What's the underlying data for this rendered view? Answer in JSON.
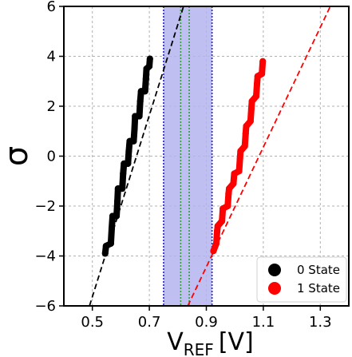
{
  "chart_data": {
    "type": "scatter",
    "title": "",
    "xlabel": "V",
    "xlabel_subscript": "REF",
    "xlabel_unit": "[V]",
    "ylabel": "σ",
    "xlim": [
      0.4,
      1.4
    ],
    "ylim": [
      -6,
      6
    ],
    "xticks": [
      0.5,
      0.7,
      0.9,
      1.1,
      1.3
    ],
    "yticks": [
      -6,
      -4,
      -2,
      0,
      2,
      4,
      6
    ],
    "xtick_labels": [
      "0.5",
      "0.7",
      "0.9",
      "1.1",
      "1.3"
    ],
    "ytick_labels": [
      "−6",
      "−4",
      "−2",
      "0",
      "2",
      "4",
      "6"
    ],
    "grid": true,
    "legend_position": "lower-right",
    "shaded_band": {
      "x": [
        0.75,
        0.92
      ],
      "color": "#b4b4f0",
      "edge_color": "#1f1fd0"
    },
    "vertical_lines": [
      {
        "x": 0.81,
        "color": "#2ca02c",
        "style": "dotted"
      },
      {
        "x": 0.84,
        "color": "#2ca02c",
        "style": "dotted"
      }
    ],
    "series": [
      {
        "name": "0 State",
        "color": "#000000",
        "points": [
          [
            0.545,
            -3.9
          ],
          [
            0.548,
            -3.6
          ],
          [
            0.565,
            -3.5
          ],
          [
            0.568,
            -2.9
          ],
          [
            0.571,
            -2.4
          ],
          [
            0.585,
            -2.4
          ],
          [
            0.588,
            -1.8
          ],
          [
            0.59,
            -1.3
          ],
          [
            0.605,
            -1.3
          ],
          [
            0.608,
            -0.7
          ],
          [
            0.611,
            -0.3
          ],
          [
            0.625,
            -0.3
          ],
          [
            0.628,
            0.2
          ],
          [
            0.631,
            0.6
          ],
          [
            0.645,
            0.6
          ],
          [
            0.648,
            1.1
          ],
          [
            0.65,
            1.6
          ],
          [
            0.665,
            1.6
          ],
          [
            0.668,
            2.2
          ],
          [
            0.671,
            2.6
          ],
          [
            0.685,
            2.6
          ],
          [
            0.688,
            3.1
          ],
          [
            0.69,
            3.5
          ],
          [
            0.7,
            3.6
          ],
          [
            0.702,
            3.9
          ]
        ],
        "fit_line": {
          "x": [
            0.49,
            0.82
          ],
          "y": [
            -6,
            6
          ]
        }
      },
      {
        "name": "1 State",
        "color": "#ff0000",
        "points": [
          [
            0.925,
            -3.8
          ],
          [
            0.935,
            -3.5
          ],
          [
            0.938,
            -3.0
          ],
          [
            0.94,
            -2.8
          ],
          [
            0.955,
            -2.6
          ],
          [
            0.958,
            -2.1
          ],
          [
            0.975,
            -2.0
          ],
          [
            0.978,
            -1.5
          ],
          [
            0.98,
            -1.3
          ],
          [
            0.995,
            -1.1
          ],
          [
            0.998,
            -0.7
          ],
          [
            1.015,
            -0.6
          ],
          [
            1.018,
            -0.1
          ],
          [
            1.02,
            0.2
          ],
          [
            1.035,
            0.4
          ],
          [
            1.038,
            0.9
          ],
          [
            1.04,
            1.2
          ],
          [
            1.055,
            1.4
          ],
          [
            1.058,
            1.9
          ],
          [
            1.06,
            2.2
          ],
          [
            1.075,
            2.4
          ],
          [
            1.078,
            2.9
          ],
          [
            1.08,
            3.2
          ],
          [
            1.095,
            3.3
          ],
          [
            1.098,
            3.8
          ]
        ],
        "fit_line": {
          "x": [
            0.835,
            1.335
          ],
          "y": [
            -6,
            6
          ]
        }
      }
    ]
  }
}
